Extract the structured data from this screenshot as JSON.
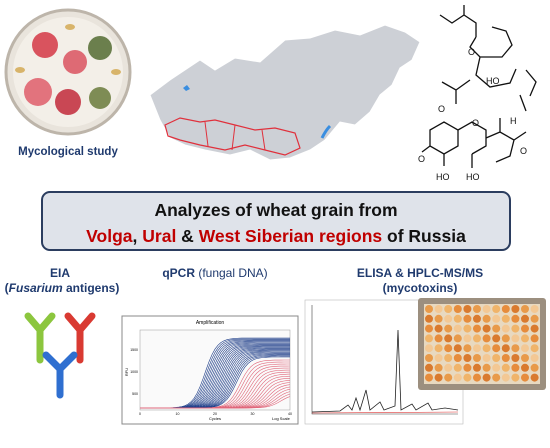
{
  "mycology": {
    "label": "Mycological study"
  },
  "banner": {
    "line1": "Analyzes of wheat grain from",
    "line2": [
      "Volga",
      ", ",
      "Ural",
      " & ",
      "West Siberian regions",
      " of Russia"
    ]
  },
  "methods": {
    "eia": {
      "title": "EIA",
      "subtitle": [
        "(",
        "Fusarium",
        " antigens)"
      ]
    },
    "qpcr": {
      "title": "qPCR",
      "detail": " (fungal DNA)"
    },
    "elisa": {
      "title": "ELISA & HPLC-MS/MS",
      "subtitle": "(mycotoxins)"
    }
  },
  "qpcr_plot": {
    "title": "Amplification",
    "xlabel": "Cycles",
    "ylabel": "RFU",
    "legend": "Log Scale",
    "xticks": [
      "0",
      "10",
      "20",
      "30",
      "40"
    ],
    "yticks": [
      "500",
      "1000",
      "1500"
    ]
  }
}
